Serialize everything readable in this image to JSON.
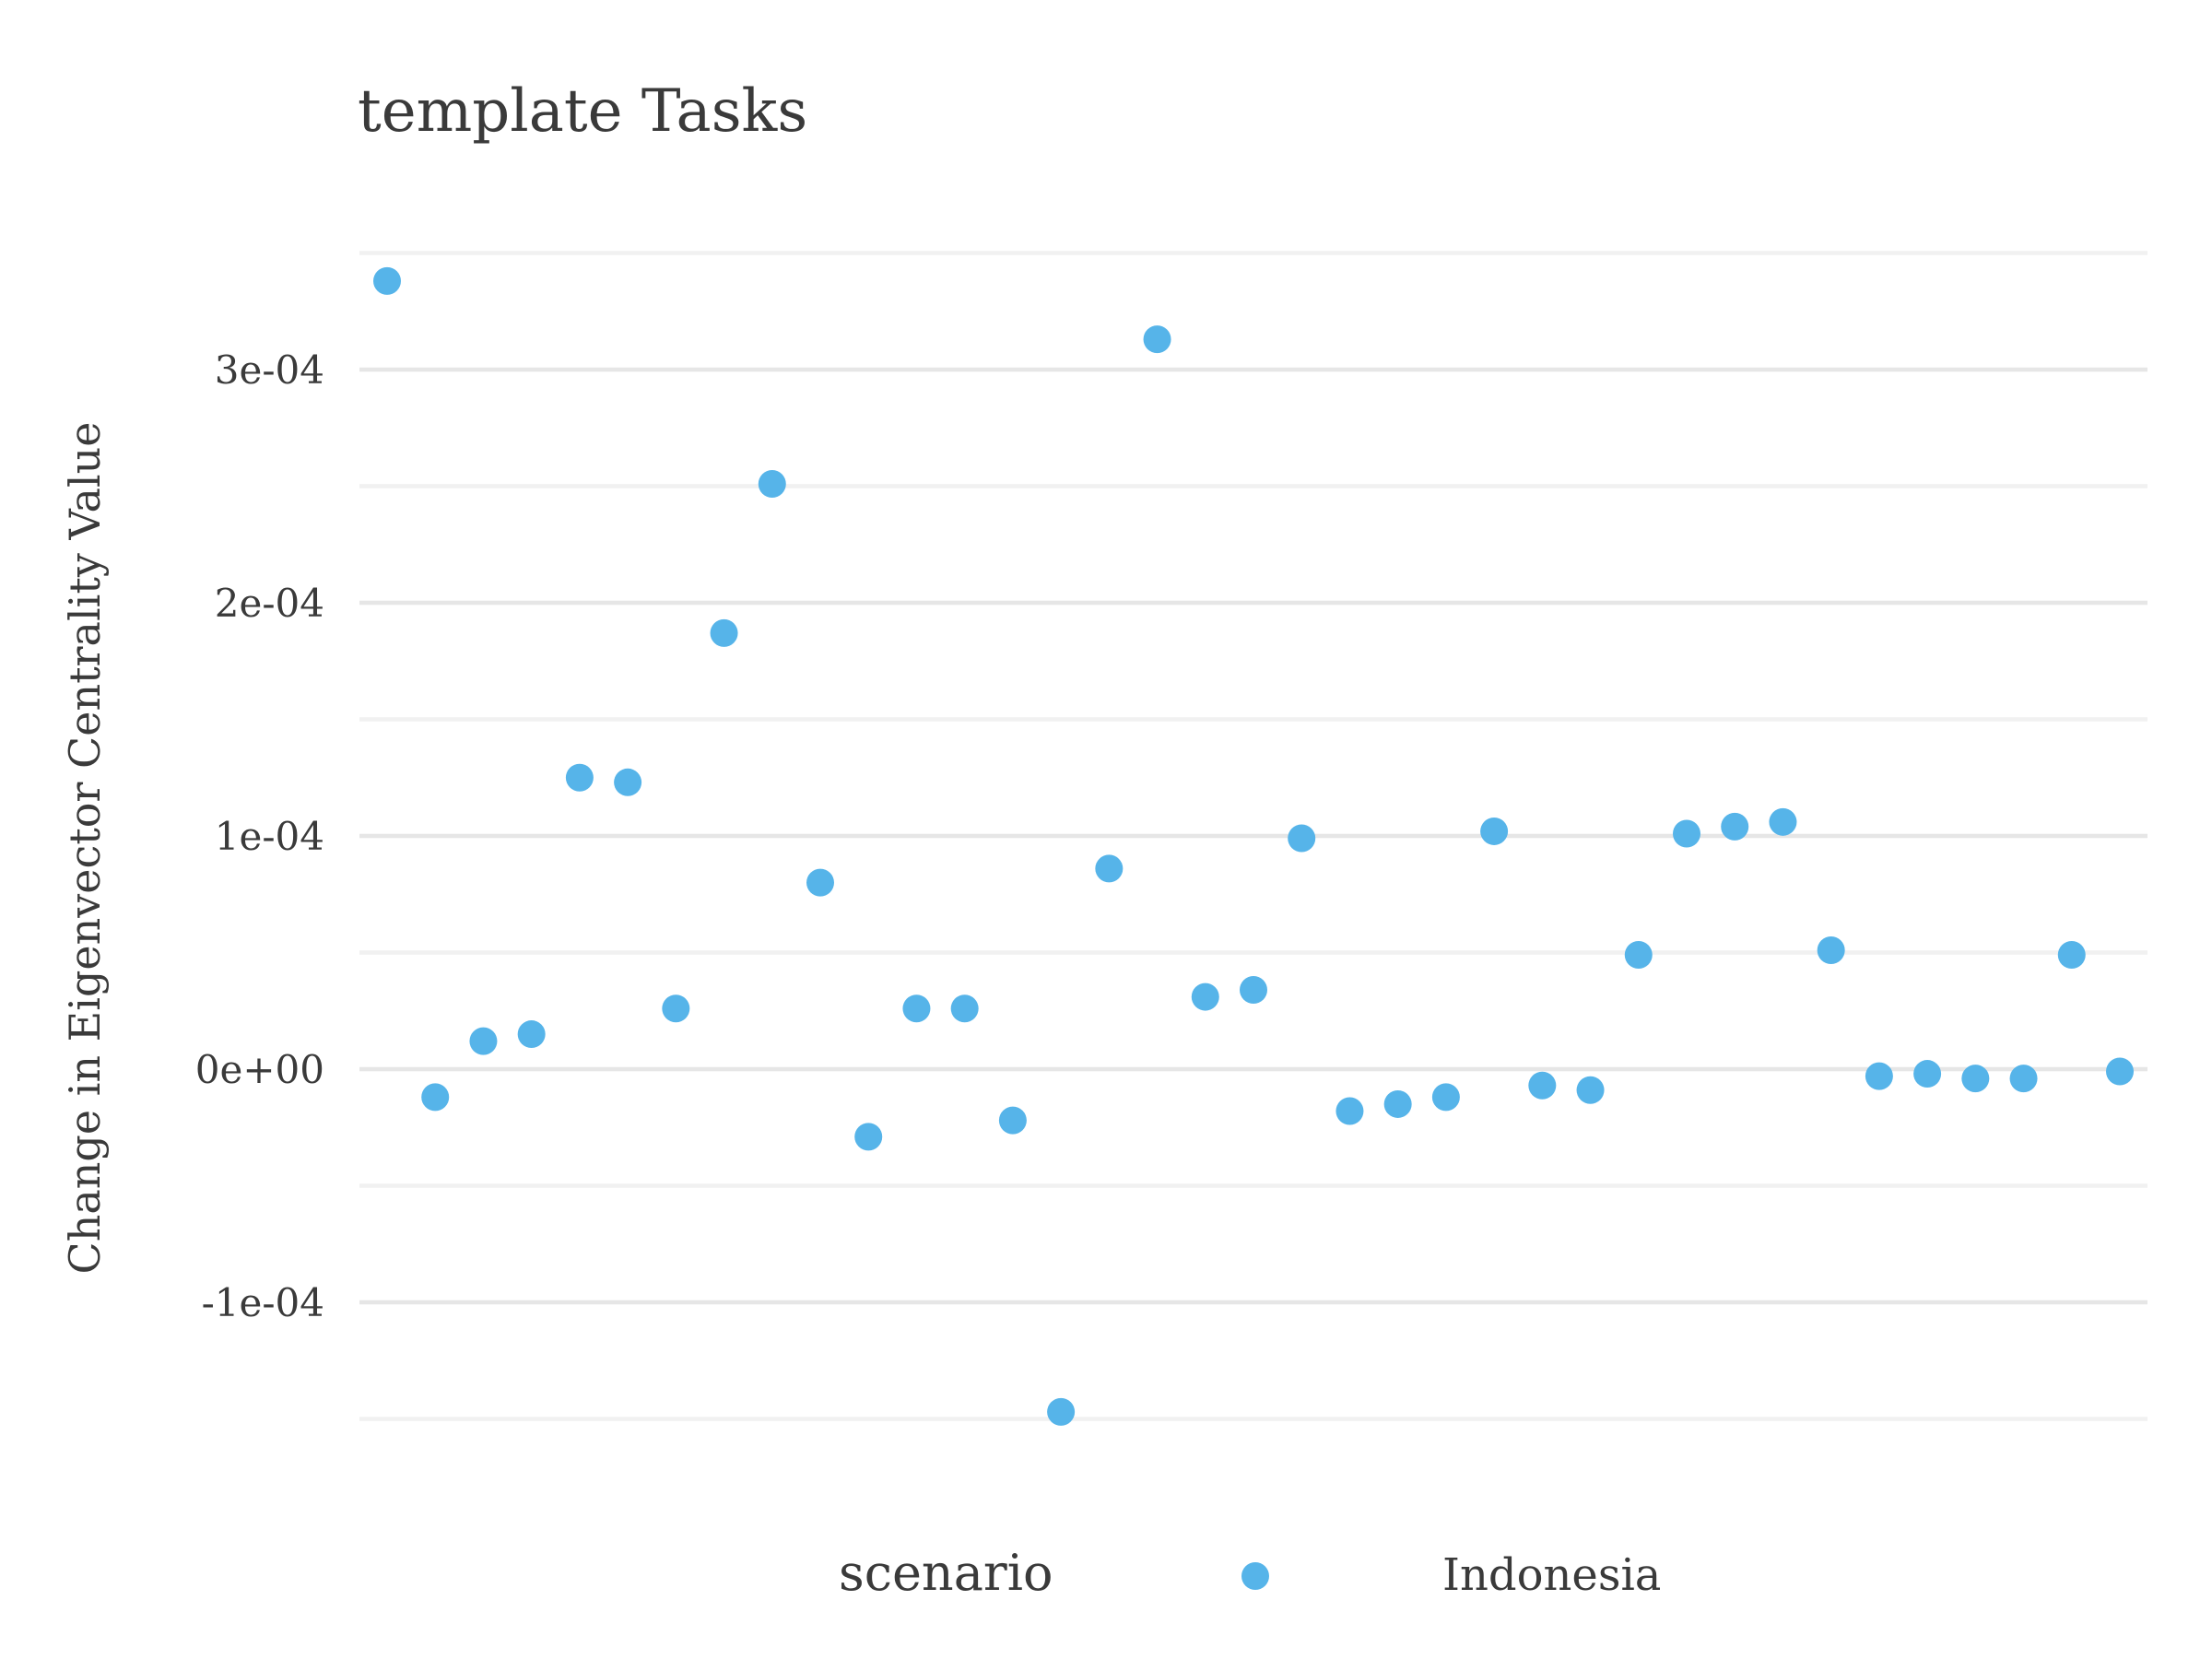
{
  "chart_data": {
    "type": "scatter",
    "title": "template Tasks",
    "xlabel": "",
    "ylabel": "Change in Eigenvector Centrality Value",
    "ylim": [
      -0.00015,
      0.00035
    ],
    "y_ticks": [
      -0.0001,
      0.0,
      0.0001,
      0.0002,
      0.0003
    ],
    "y_tick_labels": [
      "-1e-04",
      "0e+00",
      "1e-04",
      "2e-04",
      "3e-04"
    ],
    "grid": true,
    "legend": {
      "title": "scenario",
      "position": "bottom",
      "entries": [
        "Indonesia"
      ]
    },
    "colors": {
      "Indonesia": "#56b4e9"
    },
    "series": [
      {
        "name": "Indonesia",
        "x": [
          1,
          2,
          3,
          4,
          5,
          6,
          7,
          8,
          9,
          10,
          11,
          12,
          13,
          14,
          15,
          16,
          17,
          18,
          19,
          20,
          21,
          22,
          23,
          24,
          25,
          26,
          27,
          28,
          29,
          30,
          31,
          32,
          33,
          34,
          35,
          36,
          37
        ],
        "values": [
          0.000338,
          -1.2e-05,
          1.2e-05,
          1.5e-05,
          0.000125,
          0.000123,
          2.6e-05,
          0.000187,
          0.000251,
          8e-05,
          -2.9e-05,
          2.6e-05,
          2.6e-05,
          -2.2e-05,
          -0.000147,
          8.6e-05,
          0.000313,
          3.1e-05,
          3.4e-05,
          9.9e-05,
          -1.8e-05,
          -1.5e-05,
          -1.2e-05,
          0.000102,
          -7e-06,
          -9e-06,
          4.9e-05,
          0.000101,
          0.000104,
          0.000106,
          5.1e-05,
          -3e-06,
          -2e-06,
          -4e-06,
          -4e-06,
          4.9e-05,
          -1e-06
        ]
      }
    ]
  }
}
